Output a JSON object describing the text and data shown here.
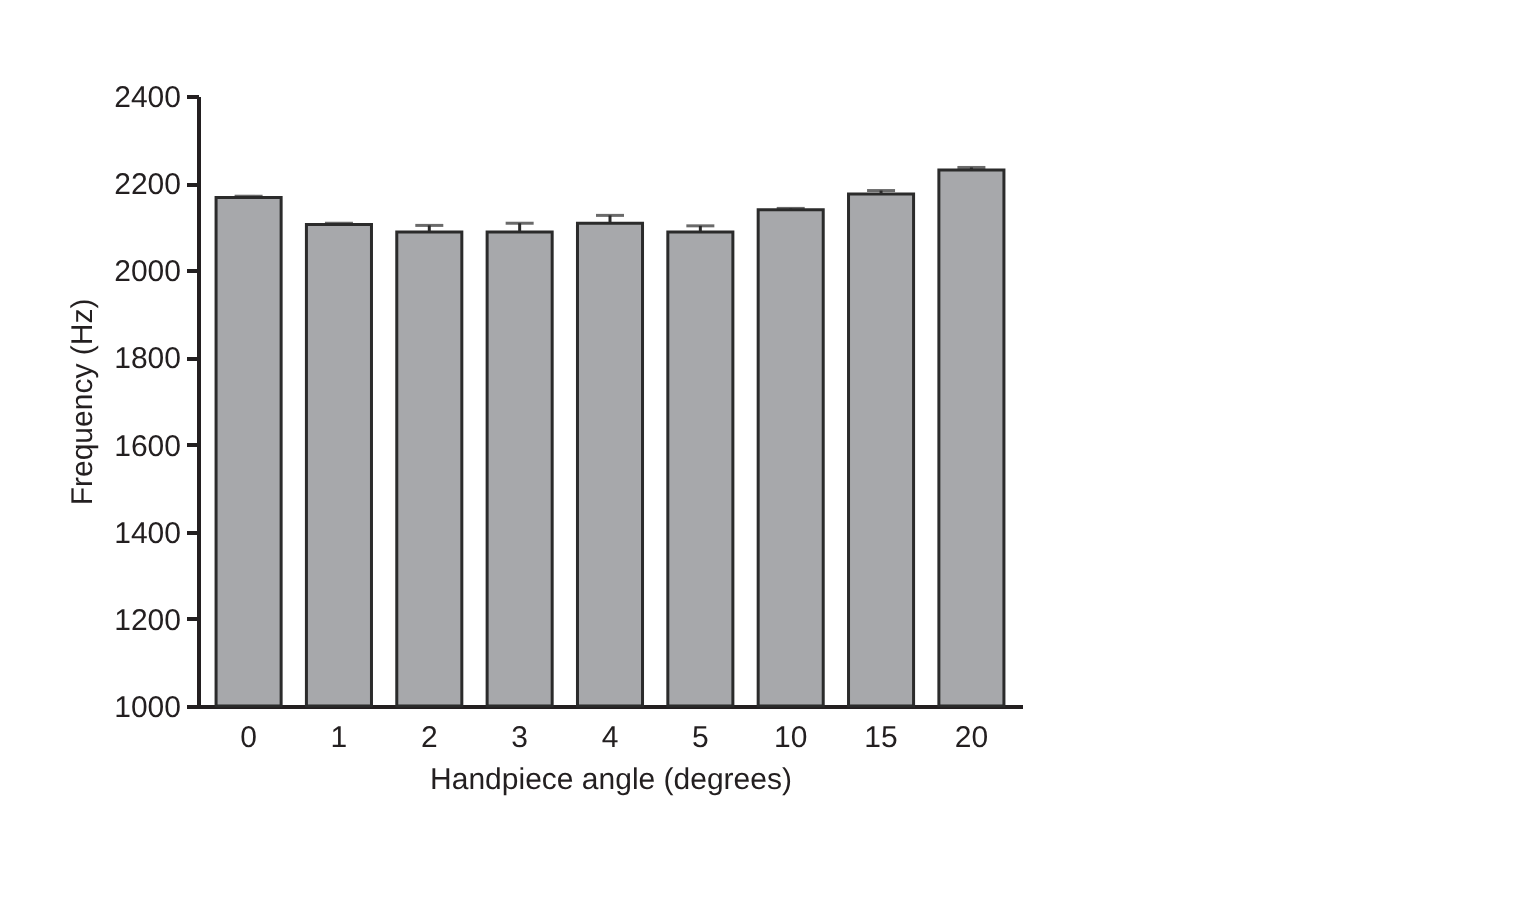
{
  "chart_data": {
    "type": "bar",
    "xlabel": "Handpiece angle (degrees)",
    "ylabel": "Frequency (Hz)",
    "categories": [
      "0",
      "1",
      "2",
      "3",
      "4",
      "5",
      "10",
      "15",
      "20"
    ],
    "values": [
      2167,
      2105,
      2088,
      2088,
      2108,
      2088,
      2139,
      2175,
      2230
    ],
    "errors": [
      [
        2167,
        2170
      ],
      [
        2105,
        2108
      ],
      [
        2088,
        2103
      ],
      [
        2088,
        2108
      ],
      [
        2108,
        2126
      ],
      [
        2088,
        2102
      ],
      [
        2139,
        2142
      ],
      [
        2175,
        2183
      ],
      [
        2230,
        2236
      ]
    ],
    "color": "#a7a8ab",
    "ylim": [
      1000,
      2400
    ],
    "yticks": [
      1000,
      1200,
      1400,
      1600,
      1800,
      2000,
      2200,
      2400
    ],
    "grid": false
  }
}
